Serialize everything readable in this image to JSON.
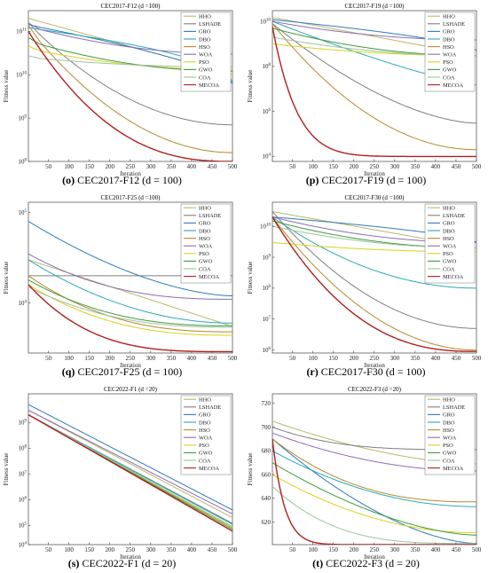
{
  "figure": {
    "iteration_label": "Iteration",
    "fitness_label": "Fitness value"
  },
  "legend": [
    {
      "name": "HHO",
      "color": "#b8b86a"
    },
    {
      "name": "LSHADE",
      "color": "#7f7f7f"
    },
    {
      "name": "GRO",
      "color": "#2d7bb8"
    },
    {
      "name": "DBO",
      "color": "#2aa9b5"
    },
    {
      "name": "HSO",
      "color": "#b38a2e"
    },
    {
      "name": "WOA",
      "color": "#8e6bb5"
    },
    {
      "name": "PSO",
      "color": "#d8d31a"
    },
    {
      "name": "GWO",
      "color": "#3f9a3f"
    },
    {
      "name": "COA",
      "color": "#9ec49e"
    },
    {
      "name": "MECOA",
      "color": "#b21e1e"
    }
  ],
  "chart_data": [
    {
      "type": "line",
      "title": "CEC2017-F12 (d =100)",
      "caption_letter": "(o)",
      "caption_text": " CEC2017-F12 (d = 100)",
      "xlabel": "Iteration",
      "ylabel": "Fitness value",
      "xlim": [
        1,
        500
      ],
      "yscale": "log",
      "ylim": [
        100000000.0,
        300000000000.0
      ],
      "xticks": [
        50,
        100,
        150,
        200,
        250,
        300,
        350,
        400,
        450,
        500
      ],
      "yticks": [
        {
          "v": 100000000000.0,
          "label": "10^11"
        },
        {
          "v": 10000000000.0,
          "label": "10^10"
        },
        {
          "v": 1000000000.0,
          "label": "10^9"
        },
        {
          "v": 100000000.0,
          "label": "10^8"
        }
      ],
      "series": [
        {
          "name": "HHO",
          "start": 200000000000.0,
          "end": 10000000000.0,
          "k": 1.0,
          "s": 0
        },
        {
          "name": "LSHADE",
          "start": 150000000000.0,
          "end": 700000000.0,
          "k": 0.5,
          "s": 1.5
        },
        {
          "name": "GRO",
          "start": 140000000000.0,
          "end": 6000000000.0,
          "k": 1.5,
          "s": 0.5
        },
        {
          "name": "DBO",
          "start": 120000000000.0,
          "end": 6000000000.0,
          "k": 2.0,
          "s": 0.5
        },
        {
          "name": "HSO",
          "start": 120000000000.0,
          "end": 160000000.0,
          "k": 0.5,
          "s": 3.0
        },
        {
          "name": "WOA",
          "start": 130000000000.0,
          "end": 30000000000.0,
          "k": 0.5,
          "s": 4.0
        },
        {
          "name": "PSO",
          "start": 40000000000.0,
          "end": 13000000000.0,
          "k": 0.5,
          "s": 3.0
        },
        {
          "name": "GWO",
          "start": 60000000000.0,
          "end": 12000000000.0,
          "k": 0.5,
          "s": 4.0
        },
        {
          "name": "COA",
          "start": 25000000000.0,
          "end": 15000000000.0,
          "k": 0.5,
          "s": 2.0
        },
        {
          "name": "MECOA",
          "start": 100000000000.0,
          "end": 100000000.0,
          "k": 0.4,
          "s": 0
        }
      ]
    },
    {
      "type": "line",
      "title": "CEC2017-F19 (d =100)",
      "caption_letter": "(p)",
      "caption_text": " CEC2017-F19 (d = 100)",
      "xlabel": "Iteration",
      "ylabel": "Fitness value",
      "xlim": [
        1,
        500
      ],
      "yscale": "log",
      "ylim": [
        6000.0,
        30000000000.0
      ],
      "xticks": [
        50,
        100,
        150,
        200,
        250,
        300,
        350,
        400,
        450,
        500
      ],
      "yticks": [
        {
          "v": 10000000000.0,
          "label": "10^10"
        },
        {
          "v": 100000000.0,
          "label": "10^8"
        },
        {
          "v": 1000000.0,
          "label": "10^6"
        },
        {
          "v": 10000.0,
          "label": "10^4"
        }
      ],
      "series": [
        {
          "name": "HHO",
          "start": 15000000000.0,
          "end": 300000000.0,
          "k": 1.0,
          "s": 0
        },
        {
          "name": "LSHADE",
          "start": 8000000000.0,
          "end": 300000.0,
          "k": 0.6,
          "s": 0
        },
        {
          "name": "GRO",
          "start": 12000000000.0,
          "end": 500000000.0,
          "k": 1.5,
          "s": 0
        },
        {
          "name": "DBO",
          "start": 10000000000.0,
          "end": 15000000.0,
          "k": 0.8,
          "s": 0
        },
        {
          "name": "HSO",
          "start": 8000000000.0,
          "end": 20000.0,
          "k": 0.5,
          "s": 0
        },
        {
          "name": "WOA",
          "start": 10000000000.0,
          "end": 1500000000.0,
          "k": 0.5,
          "s": 0
        },
        {
          "name": "PSO",
          "start": 1000000000.0,
          "end": 300000000.0,
          "k": 0.5,
          "s": 0
        },
        {
          "name": "GWO",
          "start": 5000000000.0,
          "end": 300000000.0,
          "k": 0.5,
          "s": 0
        },
        {
          "name": "COA",
          "start": 2000000000.0,
          "end": 300000000.0,
          "k": 0.5,
          "s": 0
        },
        {
          "name": "MECOA",
          "start": 6000000000.0,
          "end": 10000.0,
          "k": 0.12,
          "s": 0
        }
      ]
    },
    {
      "type": "line",
      "title": "CEC2017-F25 (d =100)",
      "caption_letter": "(q)",
      "caption_text": " CEC2017-F25 (d = 100)",
      "xlabel": "Iteration",
      "ylabel": "Fitness value",
      "xlim": [
        1,
        500
      ],
      "yscale": "log",
      "ylim": [
        2800.0,
        130000.0
      ],
      "xticks": [
        50,
        100,
        150,
        200,
        250,
        300,
        350,
        400,
        450,
        500
      ],
      "yticks": [
        {
          "v": 100000.0,
          "label": "10^5"
        },
        {
          "v": 10000.0,
          "label": "10^4"
        }
      ],
      "series": [
        {
          "name": "HHO",
          "start": 30000.0,
          "end": 5500.0,
          "k": 1.0,
          "s": 0
        },
        {
          "name": "LSHADE",
          "start": 20000.0,
          "end": 20000.0,
          "k": 1.0,
          "s": 0
        },
        {
          "name": "GRO",
          "start": 80000.0,
          "end": 12000.0,
          "k": 0.6,
          "s": 0
        },
        {
          "name": "DBO",
          "start": 30000.0,
          "end": 6000.0,
          "k": 0.5,
          "s": 0
        },
        {
          "name": "HSO",
          "start": 20000.0,
          "end": 4800.0,
          "k": 0.4,
          "s": 0
        },
        {
          "name": "WOA",
          "start": 35000.0,
          "end": 11000.0,
          "k": 0.4,
          "s": 0
        },
        {
          "name": "PSO",
          "start": 16000.0,
          "end": 4400.0,
          "k": 0.4,
          "s": 0
        },
        {
          "name": "GWO",
          "start": 18000.0,
          "end": 5600.0,
          "k": 0.4,
          "s": 0
        },
        {
          "name": "COA",
          "start": 15000.0,
          "end": 5400.0,
          "k": 0.4,
          "s": 0
        },
        {
          "name": "MECOA",
          "start": 16000.0,
          "end": 2900.0,
          "k": 0.3,
          "s": 0
        }
      ]
    },
    {
      "type": "line",
      "title": "CEC2017-F30 (d =100)",
      "caption_letter": "(r)",
      "caption_text": " CEC2017-F30 (d = 100)",
      "xlabel": "Iteration",
      "ylabel": "Fitness value",
      "xlim": [
        1,
        500
      ],
      "yscale": "log",
      "ylim": [
        800000.0,
        60000000000.0
      ],
      "xticks": [
        50,
        100,
        150,
        200,
        250,
        300,
        350,
        400,
        450,
        500
      ],
      "yticks": [
        {
          "v": 10000000000.0,
          "label": "10^10"
        },
        {
          "v": 1000000000.0,
          "label": "10^9"
        },
        {
          "v": 100000000.0,
          "label": "10^8"
        },
        {
          "v": 10000000.0,
          "label": "10^7"
        },
        {
          "v": 1000000.0,
          "label": "10^6"
        }
      ],
      "series": [
        {
          "name": "HHO",
          "start": 30000000000.0,
          "end": 2000000000.0,
          "k": 1.0,
          "s": 0
        },
        {
          "name": "LSHADE",
          "start": 30000000000.0,
          "end": 5000000.0,
          "k": 0.5,
          "s": 0
        },
        {
          "name": "GRO",
          "start": 20000000000.0,
          "end": 3000000000.0,
          "k": 1.5,
          "s": 0
        },
        {
          "name": "DBO",
          "start": 20000000000.0,
          "end": 100000000.0,
          "k": 0.5,
          "s": 0
        },
        {
          "name": "HSO",
          "start": 20000000000.0,
          "end": 1000000.0,
          "k": 0.5,
          "s": 0
        },
        {
          "name": "WOA",
          "start": 20000000000.0,
          "end": 3000000000.0,
          "k": 0.5,
          "s": 0
        },
        {
          "name": "PSO",
          "start": 3000000000.0,
          "end": 1500000000.0,
          "k": 0.5,
          "s": 0
        },
        {
          "name": "GWO",
          "start": 15000000000.0,
          "end": 2000000000.0,
          "k": 0.5,
          "s": 0
        },
        {
          "name": "COA",
          "start": 10000000000.0,
          "end": 2000000000.0,
          "k": 0.5,
          "s": 0
        },
        {
          "name": "MECOA",
          "start": 20000000000.0,
          "end": 900000.0,
          "k": 0.4,
          "s": 0
        }
      ]
    },
    {
      "type": "line",
      "title": "CEC2022-F1 (d =20)",
      "caption_letter": "(s)",
      "caption_text": " CEC2022-F1 (d = 20)",
      "xlabel": "Iteration",
      "ylabel": "Fitness value",
      "xlim": [
        1,
        500
      ],
      "yscale": "log",
      "ylim": [
        18000.0,
        13000000000.0
      ],
      "xticks": [
        50,
        100,
        150,
        200,
        250,
        300,
        350,
        400,
        450,
        500
      ],
      "yticks": [
        {
          "v": 1000000000.0,
          "label": "10^9"
        },
        {
          "v": 100000000.0,
          "label": "10^8"
        },
        {
          "v": 10000000.0,
          "label": "10^7"
        },
        {
          "v": 1000000.0,
          "label": "10^6"
        },
        {
          "v": 100000.0,
          "label": "10^5"
        },
        {
          "v": 10000.0,
          "label": "10^4"
        }
      ],
      "series": [
        {
          "name": "HHO",
          "start": 3000000000.0,
          "end": 200000.0,
          "k": 1.0,
          "s": 0
        },
        {
          "name": "LSHADE",
          "start": 2000000000.0,
          "end": 120000.0,
          "k": 1.0,
          "s": 0
        },
        {
          "name": "GRO",
          "start": 5000000000.0,
          "end": 400000.0,
          "k": 1.0,
          "s": 0
        },
        {
          "name": "DBO",
          "start": 2000000000.0,
          "end": 110000.0,
          "k": 1.0,
          "s": 0
        },
        {
          "name": "HSO",
          "start": 2000000000.0,
          "end": 80000.0,
          "k": 1.0,
          "s": 0
        },
        {
          "name": "WOA",
          "start": 3000000000.0,
          "end": 280000.0,
          "k": 1.0,
          "s": 0
        },
        {
          "name": "PSO",
          "start": 2000000000.0,
          "end": 85000.0,
          "k": 1.0,
          "s": 0
        },
        {
          "name": "GWO",
          "start": 2000000000.0,
          "end": 70000.0,
          "k": 1.0,
          "s": 0
        },
        {
          "name": "COA",
          "start": 2000000000.0,
          "end": 90000.0,
          "k": 1.0,
          "s": 0
        },
        {
          "name": "MECOA",
          "start": 2000000000.0,
          "end": 60000.0,
          "k": 1.0,
          "s": 0
        }
      ]
    },
    {
      "type": "line",
      "title": "CEC2022-F3 (d =20)",
      "caption_letter": "(t)",
      "caption_text": " CEC2022-F3 (d = 20)",
      "xlabel": "Iteration",
      "ylabel": "Fitness value",
      "xlim": [
        1,
        500
      ],
      "yscale": "linear",
      "ylim": [
        601,
        728
      ],
      "xticks": [
        50,
        100,
        150,
        200,
        250,
        300,
        350,
        400,
        450,
        500
      ],
      "yticks": [
        {
          "v": 720,
          "label": "720"
        },
        {
          "v": 700,
          "label": "700"
        },
        {
          "v": 680,
          "label": "680"
        },
        {
          "v": 660,
          "label": "660"
        },
        {
          "v": 640,
          "label": "640"
        },
        {
          "v": 620,
          "label": "620"
        }
      ],
      "series": [
        {
          "name": "HHO",
          "start": 705,
          "end": 669,
          "k": 0.6,
          "s": 0
        },
        {
          "name": "LSHADE",
          "start": 700,
          "end": 681,
          "k": 0.3,
          "s": 0
        },
        {
          "name": "GRO",
          "start": 690,
          "end": 602,
          "k": 0.6,
          "s": 0
        },
        {
          "name": "DBO",
          "start": 680,
          "end": 633,
          "k": 0.5,
          "s": 0
        },
        {
          "name": "HSO",
          "start": 690,
          "end": 637,
          "k": 0.4,
          "s": 0
        },
        {
          "name": "WOA",
          "start": 695,
          "end": 663,
          "k": 0.5,
          "s": 0
        },
        {
          "name": "PSO",
          "start": 660,
          "end": 611,
          "k": 0.5,
          "s": 0
        },
        {
          "name": "GWO",
          "start": 670,
          "end": 609,
          "k": 0.6,
          "s": 0
        },
        {
          "name": "COA",
          "start": 650,
          "end": 602,
          "k": 0.3,
          "s": 0
        },
        {
          "name": "MECOA",
          "start": 690,
          "end": 601,
          "k": 0.06,
          "s": 0
        }
      ]
    }
  ]
}
